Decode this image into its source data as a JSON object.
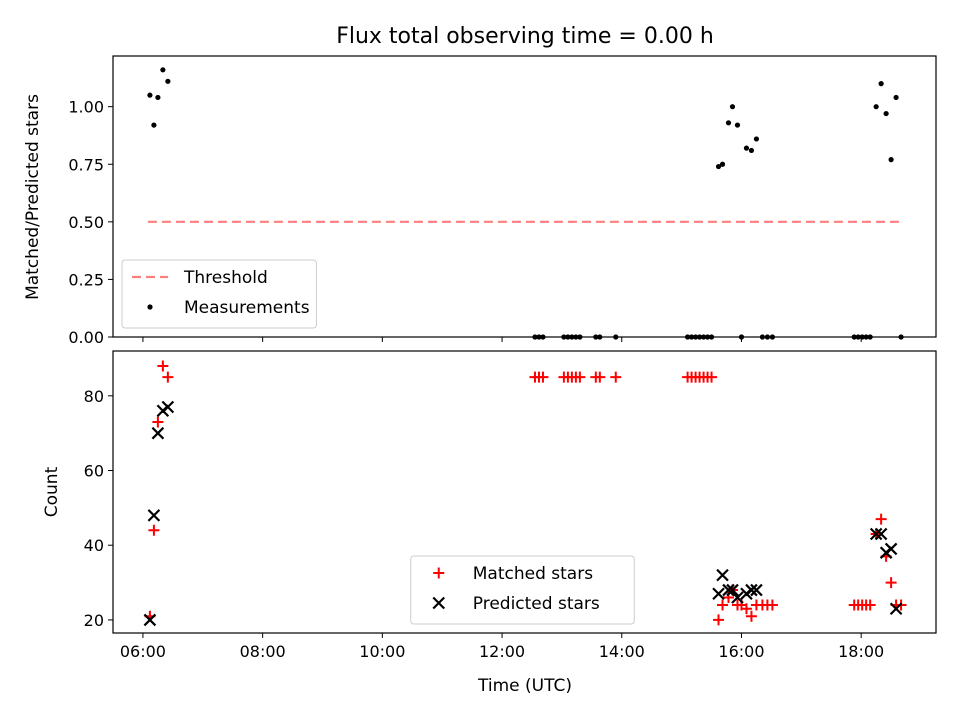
{
  "figure": {
    "title": "Flux total observing time = 0.00 h",
    "xlabel": "Time (UTC)"
  },
  "chart_data": [
    {
      "type": "scatter",
      "ylabel": "Matched/Predicted stars",
      "xlim": [
        "05:30",
        "19:15"
      ],
      "ylim": [
        0,
        1.22
      ],
      "x_ticks": [
        "06:00",
        "08:00",
        "10:00",
        "12:00",
        "14:00",
        "16:00",
        "18:00"
      ],
      "y_ticks": [
        "0.00",
        "0.25",
        "0.50",
        "0.75",
        "1.00"
      ],
      "legend": {
        "placement": "lower-left",
        "entries": [
          "Threshold",
          "Measurements"
        ]
      },
      "threshold": {
        "name": "Threshold",
        "value": 0.5,
        "x": [
          "06:05",
          "18:42"
        ],
        "color": "#ff7f7f",
        "style": "dashed"
      },
      "series": [
        {
          "name": "Measurements",
          "color": "#000000",
          "marker": "dot",
          "points": [
            [
              "06:07",
              1.05
            ],
            [
              "06:11",
              0.92
            ],
            [
              "06:15",
              1.04
            ],
            [
              "06:20",
              1.16
            ],
            [
              "06:25",
              1.11
            ],
            [
              "12:33",
              0.0
            ],
            [
              "12:37",
              0.0
            ],
            [
              "12:41",
              0.0
            ],
            [
              "13:02",
              0.0
            ],
            [
              "13:06",
              0.0
            ],
            [
              "13:10",
              0.0
            ],
            [
              "13:14",
              0.0
            ],
            [
              "13:18",
              0.0
            ],
            [
              "13:34",
              0.0
            ],
            [
              "13:38",
              0.0
            ],
            [
              "13:54",
              0.0
            ],
            [
              "15:06",
              0.0
            ],
            [
              "15:10",
              0.0
            ],
            [
              "15:14",
              0.0
            ],
            [
              "15:18",
              0.0
            ],
            [
              "15:22",
              0.0
            ],
            [
              "15:26",
              0.0
            ],
            [
              "15:30",
              0.0
            ],
            [
              "15:37",
              0.74
            ],
            [
              "15:41",
              0.75
            ],
            [
              "15:47",
              0.93
            ],
            [
              "15:51",
              1.0
            ],
            [
              "15:56",
              0.92
            ],
            [
              "16:00",
              0.0
            ],
            [
              "16:05",
              0.82
            ],
            [
              "16:10",
              0.81
            ],
            [
              "16:15",
              0.86
            ],
            [
              "16:21",
              0.0
            ],
            [
              "16:26",
              0.0
            ],
            [
              "16:31",
              0.0
            ],
            [
              "17:53",
              0.0
            ],
            [
              "17:57",
              0.0
            ],
            [
              "18:01",
              0.0
            ],
            [
              "18:05",
              0.0
            ],
            [
              "18:09",
              0.0
            ],
            [
              "18:15",
              1.0
            ],
            [
              "18:20",
              1.1
            ],
            [
              "18:25",
              0.97
            ],
            [
              "18:30",
              0.77
            ],
            [
              "18:35",
              1.04
            ],
            [
              "18:40",
              0.0
            ]
          ]
        }
      ]
    },
    {
      "type": "scatter",
      "ylabel": "Count",
      "xlim": [
        "05:30",
        "19:15"
      ],
      "ylim": [
        16.5,
        92
      ],
      "x_ticks": [
        "06:00",
        "08:00",
        "10:00",
        "12:00",
        "14:00",
        "16:00",
        "18:00"
      ],
      "y_ticks": [
        "20",
        "40",
        "60",
        "80"
      ],
      "legend": {
        "placement": "lower-center",
        "entries": [
          "Matched stars",
          "Predicted stars"
        ]
      },
      "series": [
        {
          "name": "Matched stars",
          "color": "#ff0000",
          "marker": "plus",
          "points": [
            [
              "06:07",
              21
            ],
            [
              "06:11",
              44
            ],
            [
              "06:15",
              73
            ],
            [
              "06:20",
              88
            ],
            [
              "06:25",
              85
            ],
            [
              "12:33",
              85
            ],
            [
              "12:37",
              85
            ],
            [
              "12:41",
              85
            ],
            [
              "13:02",
              85
            ],
            [
              "13:06",
              85
            ],
            [
              "13:10",
              85
            ],
            [
              "13:14",
              85
            ],
            [
              "13:18",
              85
            ],
            [
              "13:34",
              85
            ],
            [
              "13:38",
              85
            ],
            [
              "13:54",
              85
            ],
            [
              "15:06",
              85
            ],
            [
              "15:10",
              85
            ],
            [
              "15:14",
              85
            ],
            [
              "15:18",
              85
            ],
            [
              "15:22",
              85
            ],
            [
              "15:26",
              85
            ],
            [
              "15:30",
              85
            ],
            [
              "15:37",
              20
            ],
            [
              "15:41",
              24
            ],
            [
              "15:47",
              26
            ],
            [
              "15:51",
              28
            ],
            [
              "15:56",
              24
            ],
            [
              "16:00",
              24
            ],
            [
              "16:05",
              23
            ],
            [
              "16:10",
              21
            ],
            [
              "16:15",
              24
            ],
            [
              "16:21",
              24
            ],
            [
              "16:26",
              24
            ],
            [
              "16:31",
              24
            ],
            [
              "17:53",
              24
            ],
            [
              "17:57",
              24
            ],
            [
              "18:01",
              24
            ],
            [
              "18:05",
              24
            ],
            [
              "18:09",
              24
            ],
            [
              "18:15",
              43
            ],
            [
              "18:20",
              47
            ],
            [
              "18:25",
              37
            ],
            [
              "18:30",
              30
            ],
            [
              "18:35",
              24
            ],
            [
              "18:40",
              24
            ]
          ]
        },
        {
          "name": "Predicted stars",
          "color": "#000000",
          "marker": "x",
          "points": [
            [
              "06:07",
              20
            ],
            [
              "06:11",
              48
            ],
            [
              "06:15",
              70
            ],
            [
              "06:20",
              76
            ],
            [
              "06:25",
              77
            ],
            [
              "15:37",
              27
            ],
            [
              "15:41",
              32
            ],
            [
              "15:47",
              28
            ],
            [
              "15:51",
              28
            ],
            [
              "15:56",
              26
            ],
            [
              "16:05",
              27
            ],
            [
              "16:10",
              28
            ],
            [
              "16:15",
              28
            ],
            [
              "18:15",
              43
            ],
            [
              "18:20",
              43
            ],
            [
              "18:25",
              38
            ],
            [
              "18:30",
              39
            ],
            [
              "18:35",
              23
            ]
          ]
        }
      ]
    }
  ]
}
